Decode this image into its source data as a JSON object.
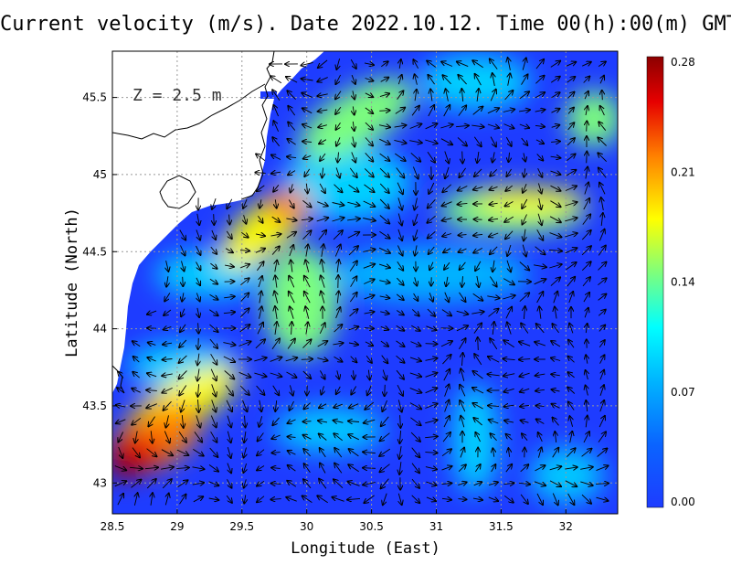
{
  "title": "Current velocity (m/s). Date 2022.10.12. Time 00(h):00(m) GMT",
  "depth_label": "Z = 2.5 m",
  "x_axis": {
    "label": "Longitude (East)",
    "range": [
      28.5,
      32.4
    ],
    "ticks": [
      "28.5",
      "29",
      "29.5",
      "30",
      "30.5",
      "31",
      "31.5",
      "32"
    ]
  },
  "y_axis": {
    "label": "Latitude (North)",
    "range": [
      42.8,
      45.8
    ],
    "ticks": [
      "43",
      "43.5",
      "44",
      "44.5",
      "45",
      "45.5"
    ]
  },
  "colorbar": {
    "ticks": [
      "0.00",
      "0.07",
      "0.14",
      "0.21",
      "0.28"
    ],
    "min": 0.0,
    "max": 0.28,
    "colors": [
      "#1e3cff",
      "#00a0ff",
      "#00ffff",
      "#7dff7d",
      "#ffff00",
      "#ff8000",
      "#e60000",
      "#8c0000"
    ]
  },
  "colors": {
    "land": "#ffffff",
    "coast": "#000000",
    "grid": "#999999",
    "arrow": "#000000"
  }
}
